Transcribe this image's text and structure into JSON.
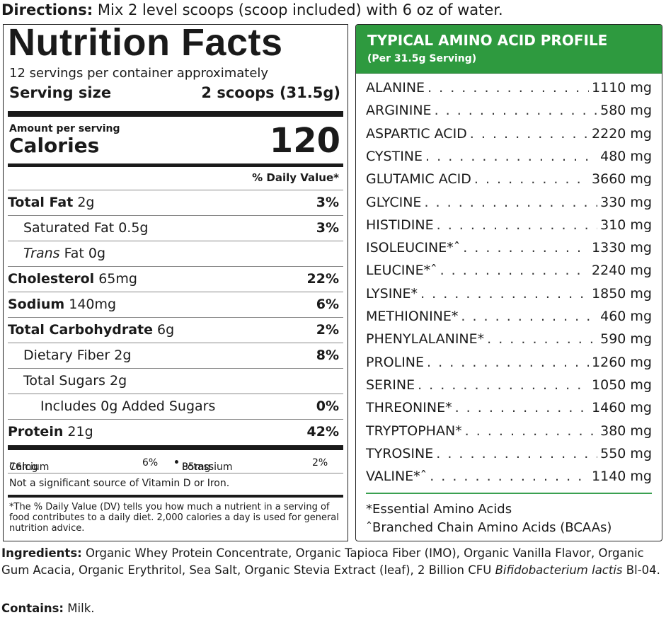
{
  "directions": {
    "label": "Directions:",
    "text": "Mix 2 level scoops (scoop included) with 6 oz of water."
  },
  "nutrition_facts": {
    "title": "Nutrition Facts",
    "servings": "12 servings per container approximately",
    "serving_size_label": "Serving size",
    "serving_size_value": "2 scoops (31.5g)",
    "amount_per_serving": "Amount per serving",
    "calories_label": "Calories",
    "calories_value": "120",
    "dv_header": "% Daily Value*",
    "rows": [
      {
        "name": "Total Fat",
        "amount": "2g",
        "dv": "3%"
      },
      {
        "name": "Saturated Fat",
        "amount": "0.5g",
        "dv": "3%"
      },
      {
        "name": "Trans",
        "suffix": "Fat",
        "amount": "0g",
        "dv": ""
      },
      {
        "name": "Cholesterol",
        "amount": "65mg",
        "dv": "22%"
      },
      {
        "name": "Sodium",
        "amount": "140mg",
        "dv": "6%"
      },
      {
        "name": "Total Carbohydrate",
        "amount": "6g",
        "dv": "2%"
      },
      {
        "name": "Dietary Fiber",
        "amount": "2g",
        "dv": "8%"
      },
      {
        "name": "Total Sugars",
        "amount": "2g",
        "dv": ""
      },
      {
        "name": "Includes 0g Added Sugars",
        "amount": "",
        "dv": "0%"
      },
      {
        "name": "Protein",
        "amount": "21g",
        "dv": "42%"
      }
    ],
    "minerals": [
      {
        "name": "Calcium",
        "amount": "76mg",
        "dv": "6%"
      },
      {
        "name": "Potassium",
        "amount": "85mg",
        "dv": "2%"
      }
    ],
    "separator": "•",
    "not_significant": "Not a significant source of Vitamin D or Iron.",
    "footnote": "*The % Daily Value (DV) tells you how much a nutrient in a serving of food contributes to a daily diet. 2,000 calories a day is used for general nutrition advice."
  },
  "amino_profile": {
    "title": "TYPICAL AMINO ACID PROFILE",
    "subtitle": "(Per 31.5g Serving)",
    "accent_color": "#2e9a3f",
    "items": [
      {
        "name": "ALANINE",
        "value": "1110 mg"
      },
      {
        "name": "ARGININE",
        "value": "580 mg"
      },
      {
        "name": "ASPARTIC ACID",
        "value": "2220 mg"
      },
      {
        "name": "CYSTINE",
        "value": "480 mg"
      },
      {
        "name": "GLUTAMIC ACID",
        "value": "3660 mg"
      },
      {
        "name": "GLYCINE",
        "value": "330 mg"
      },
      {
        "name": "HISTIDINE",
        "value": "310 mg"
      },
      {
        "name": "ISOLEUCINE*ˆ",
        "value": "1330 mg"
      },
      {
        "name": "LEUCINE*ˆ",
        "value": "2240 mg"
      },
      {
        "name": "LYSINE*",
        "value": "1850 mg"
      },
      {
        "name": "METHIONINE*",
        "value": "460 mg"
      },
      {
        "name": "PHENYLALANINE*",
        "value": "590 mg"
      },
      {
        "name": "PROLINE",
        "value": "1260 mg"
      },
      {
        "name": "SERINE",
        "value": "1050 mg"
      },
      {
        "name": "THREONINE*",
        "value": "1460 mg"
      },
      {
        "name": "TRYPTOPHAN*",
        "value": "380 mg"
      },
      {
        "name": "TYROSINE",
        "value": "550 mg"
      },
      {
        "name": "VALINE*ˆ",
        "value": "1140 mg"
      }
    ],
    "note_essential": "*Essential Amino Acids",
    "note_bcaa": "ˆBranched Chain Amino Acids (BCAAs)"
  },
  "ingredients": {
    "label": "Ingredients:",
    "text": "Organic Whey Protein Concentrate, Organic Tapioca Fiber (IMO), Organic Vanilla Flavor, Organic Gum Acacia, Organic Erythritol, Sea Salt, Organic Stevia Extract (leaf), 2 Billion CFU",
    "italic_text": "Bifidobacterium lactis",
    "text_end": "Bl-04."
  },
  "contains": {
    "label": "Contains:",
    "text": "Milk."
  }
}
